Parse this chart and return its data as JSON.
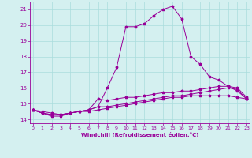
{
  "xlabel": "Windchill (Refroidissement éolien,°C)",
  "background_color": "#d4f0f0",
  "grid_color": "#aadddd",
  "line_color": "#990099",
  "x_ticks": [
    0,
    1,
    2,
    3,
    4,
    5,
    6,
    7,
    8,
    9,
    10,
    11,
    12,
    13,
    14,
    15,
    16,
    17,
    18,
    19,
    20,
    21,
    22,
    23
  ],
  "y_ticks": [
    14,
    15,
    16,
    17,
    18,
    19,
    20,
    21
  ],
  "xlim": [
    -0.3,
    23.3
  ],
  "ylim": [
    13.75,
    21.5
  ],
  "line1_x": [
    0,
    1,
    2,
    3,
    4,
    5,
    6,
    7,
    8,
    9,
    10,
    11,
    12,
    13,
    14,
    15,
    16,
    17,
    18,
    19,
    20,
    21,
    22,
    23
  ],
  "line1_y": [
    14.6,
    14.4,
    14.2,
    14.2,
    14.4,
    14.5,
    14.6,
    14.8,
    16.0,
    17.3,
    19.9,
    19.9,
    20.1,
    20.6,
    21.0,
    21.2,
    20.4,
    18.0,
    17.5,
    16.7,
    16.5,
    16.1,
    15.8,
    15.3
  ],
  "line2_x": [
    0,
    1,
    2,
    3,
    4,
    5,
    6,
    7,
    8,
    9,
    10,
    11,
    12,
    13,
    14,
    15,
    16,
    17,
    18,
    19,
    20,
    21,
    22,
    23
  ],
  "line2_y": [
    14.6,
    14.4,
    14.3,
    14.3,
    14.4,
    14.5,
    14.6,
    15.3,
    15.2,
    15.3,
    15.4,
    15.4,
    15.5,
    15.6,
    15.7,
    15.7,
    15.8,
    15.8,
    15.9,
    16.0,
    16.1,
    16.1,
    16.0,
    15.4
  ],
  "line3_x": [
    0,
    1,
    2,
    3,
    4,
    5,
    6,
    7,
    8,
    9,
    10,
    11,
    12,
    13,
    14,
    15,
    16,
    17,
    18,
    19,
    20,
    21,
    22,
    23
  ],
  "line3_y": [
    14.6,
    14.4,
    14.3,
    14.3,
    14.4,
    14.5,
    14.6,
    14.8,
    14.8,
    14.9,
    15.0,
    15.1,
    15.2,
    15.3,
    15.4,
    15.5,
    15.5,
    15.6,
    15.7,
    15.8,
    15.9,
    16.0,
    15.9,
    15.3
  ],
  "line4_x": [
    0,
    1,
    2,
    3,
    4,
    5,
    6,
    7,
    8,
    9,
    10,
    11,
    12,
    13,
    14,
    15,
    16,
    17,
    18,
    19,
    20,
    21,
    22,
    23
  ],
  "line4_y": [
    14.6,
    14.5,
    14.4,
    14.3,
    14.4,
    14.5,
    14.5,
    14.6,
    14.7,
    14.8,
    14.9,
    15.0,
    15.1,
    15.2,
    15.3,
    15.4,
    15.4,
    15.5,
    15.5,
    15.5,
    15.5,
    15.5,
    15.4,
    15.3
  ],
  "figwidth": 3.2,
  "figheight": 2.0,
  "dpi": 100
}
